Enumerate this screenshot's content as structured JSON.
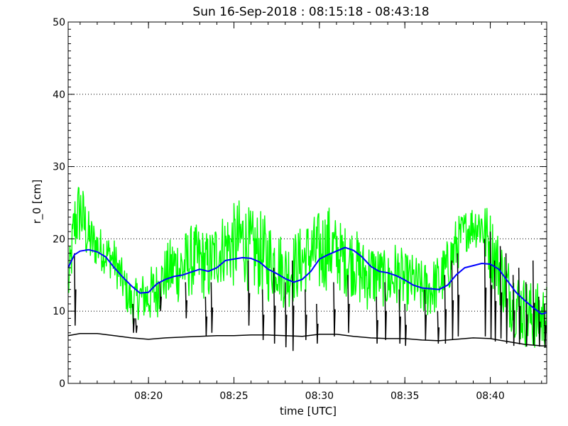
{
  "chart_data": {
    "type": "line",
    "title": "Sun 16-Sep-2018 : 08:15:18 - 08:43:18",
    "xlabel": "time [UTC]",
    "ylabel": "r_0 [cm]",
    "xlim": [
      "08:15:18",
      "08:43:18"
    ],
    "ylim": [
      0,
      50
    ],
    "x_ticks": [
      "08:20",
      "08:25",
      "08:30",
      "08:35",
      "08:40"
    ],
    "y_ticks": [
      0,
      10,
      20,
      30,
      40,
      50
    ],
    "grid": "horizontal dotted",
    "colors": {
      "background": "#ffffff",
      "axis": "#000000",
      "green": "#00ff00",
      "blue": "#0000ff",
      "black": "#000000"
    },
    "series": [
      {
        "color": "#00ff00",
        "style": "noisy",
        "x": [
          "08:15:18",
          "08:15:40",
          "08:16:00",
          "08:16:30",
          "08:17:00",
          "08:17:30",
          "08:18:00",
          "08:18:20",
          "08:18:40",
          "08:19:00",
          "08:19:30",
          "08:20:00",
          "08:20:30",
          "08:21:00",
          "08:21:30",
          "08:22:00",
          "08:22:30",
          "08:23:00",
          "08:23:30",
          "08:24:00",
          "08:24:30",
          "08:25:00",
          "08:25:30",
          "08:26:00",
          "08:26:30",
          "08:27:00",
          "08:27:30",
          "08:28:00",
          "08:28:30",
          "08:29:00",
          "08:29:30",
          "08:30:00",
          "08:30:30",
          "08:31:00",
          "08:31:30",
          "08:32:00",
          "08:32:30",
          "08:33:00",
          "08:33:30",
          "08:34:00",
          "08:34:30",
          "08:35:00",
          "08:35:30",
          "08:36:00",
          "08:36:30",
          "08:37:00",
          "08:37:30",
          "08:38:00",
          "08:38:30",
          "08:39:00",
          "08:39:30",
          "08:40:00",
          "08:40:30",
          "08:41:00",
          "08:41:30",
          "08:42:00",
          "08:42:30",
          "08:43:00",
          "08:43:18"
        ],
        "y": [
          13,
          22,
          24,
          20,
          19,
          18,
          17,
          15,
          13,
          11,
          12,
          12,
          13,
          15,
          16,
          16,
          17,
          17,
          16,
          18,
          19,
          19,
          20,
          18,
          18,
          17,
          17,
          15,
          16,
          17,
          18,
          18,
          19,
          18,
          17,
          17,
          15,
          15,
          15,
          14,
          15,
          14,
          14,
          13,
          13,
          14,
          16,
          19,
          21,
          22,
          22,
          19,
          16,
          13,
          11,
          10,
          9,
          9,
          9
        ],
        "amp": [
          3,
          5,
          5,
          4,
          3,
          3,
          3,
          3,
          3,
          3,
          3,
          4,
          4,
          4,
          5,
          5,
          5,
          5,
          5,
          5,
          5,
          6,
          6,
          6,
          6,
          6,
          5,
          5,
          5,
          5,
          5,
          6,
          6,
          5,
          5,
          5,
          5,
          5,
          4,
          4,
          5,
          4,
          4,
          4,
          4,
          4,
          4,
          4,
          3,
          3,
          4,
          5,
          5,
          5,
          5,
          5,
          5,
          5,
          5
        ]
      },
      {
        "color": "#0000ff",
        "style": "smooth",
        "x": [
          "08:15:18",
          "08:15:40",
          "08:16:00",
          "08:16:30",
          "08:17:00",
          "08:17:30",
          "08:18:00",
          "08:18:30",
          "08:19:00",
          "08:19:30",
          "08:20:00",
          "08:20:30",
          "08:21:00",
          "08:21:30",
          "08:22:00",
          "08:22:30",
          "08:23:00",
          "08:23:30",
          "08:24:00",
          "08:24:30",
          "08:25:00",
          "08:25:30",
          "08:26:00",
          "08:26:30",
          "08:27:00",
          "08:27:30",
          "08:28:00",
          "08:28:30",
          "08:29:00",
          "08:29:30",
          "08:30:00",
          "08:30:30",
          "08:31:00",
          "08:31:30",
          "08:32:00",
          "08:32:30",
          "08:33:00",
          "08:33:30",
          "08:34:00",
          "08:34:30",
          "08:35:00",
          "08:35:30",
          "08:36:00",
          "08:36:30",
          "08:37:00",
          "08:37:30",
          "08:38:00",
          "08:38:30",
          "08:39:00",
          "08:39:30",
          "08:40:00",
          "08:40:30",
          "08:41:00",
          "08:41:30",
          "08:42:00",
          "08:42:30",
          "08:43:00",
          "08:43:18"
        ],
        "y": [
          16,
          17.8,
          18.3,
          18.5,
          18.2,
          17.5,
          16.0,
          14.7,
          13.5,
          12.5,
          12.6,
          13.8,
          14.4,
          14.8,
          15.0,
          15.4,
          15.8,
          15.5,
          16.0,
          17.0,
          17.2,
          17.4,
          17.3,
          16.8,
          15.8,
          15.2,
          14.5,
          14.0,
          14.4,
          15.5,
          17.2,
          17.8,
          18.3,
          18.8,
          18.4,
          17.5,
          16.2,
          15.5,
          15.3,
          14.9,
          14.3,
          13.6,
          13.2,
          13.1,
          13.0,
          13.6,
          15.0,
          16.0,
          16.3,
          16.6,
          16.5,
          15.8,
          14.2,
          12.6,
          11.5,
          10.5,
          9.6,
          9.8
        ]
      },
      {
        "color": "#000000",
        "style": "baseline",
        "x": [
          "08:15:18",
          "08:16:00",
          "08:17:00",
          "08:18:00",
          "08:19:00",
          "08:20:00",
          "08:21:00",
          "08:22:00",
          "08:23:00",
          "08:24:00",
          "08:25:00",
          "08:26:00",
          "08:27:00",
          "08:28:00",
          "08:29:00",
          "08:30:00",
          "08:31:00",
          "08:32:00",
          "08:33:00",
          "08:34:00",
          "08:35:00",
          "08:36:00",
          "08:37:00",
          "08:38:00",
          "08:39:00",
          "08:40:00",
          "08:41:00",
          "08:42:00",
          "08:43:00",
          "08:43:18"
        ],
        "y": [
          6.6,
          6.9,
          6.9,
          6.6,
          6.3,
          6.1,
          6.3,
          6.4,
          6.5,
          6.6,
          6.6,
          6.7,
          6.7,
          6.6,
          6.5,
          6.8,
          6.8,
          6.5,
          6.3,
          6.2,
          6.2,
          6.0,
          5.9,
          6.1,
          6.3,
          6.2,
          5.8,
          5.4,
          5.2,
          5.2
        ]
      },
      {
        "color": "#000000",
        "style": "spikes",
        "x": [
          "08:15:40",
          "08:19:05",
          "08:19:15",
          "08:20:40",
          "08:22:10",
          "08:23:20",
          "08:23:40",
          "08:25:50",
          "08:26:40",
          "08:27:20",
          "08:28:00",
          "08:28:25",
          "08:29:10",
          "08:29:50",
          "08:30:50",
          "08:31:40",
          "08:33:20",
          "08:33:50",
          "08:34:40",
          "08:35:00",
          "08:36:10",
          "08:36:55",
          "08:37:20",
          "08:37:45",
          "08:38:05",
          "08:39:40",
          "08:40:00",
          "08:40:15",
          "08:40:35",
          "08:40:55",
          "08:41:20",
          "08:41:40",
          "08:42:05",
          "08:42:30",
          "08:42:50",
          "08:43:10"
        ],
        "top": [
          18,
          11,
          9,
          14,
          14,
          12,
          14,
          17,
          13,
          16,
          14,
          17,
          13,
          11,
          14,
          15,
          12,
          14,
          13,
          11,
          13,
          10,
          15,
          17,
          18,
          20,
          21,
          17,
          19,
          18,
          15,
          16,
          14,
          17,
          12,
          11
        ],
        "bottom": [
          8,
          7,
          7,
          10,
          9,
          6.5,
          7,
          8,
          6,
          5.5,
          5,
          4.5,
          6,
          5.5,
          6.5,
          7,
          5.5,
          6,
          5.5,
          5.2,
          6,
          5.5,
          5.5,
          6,
          6.5,
          6.5,
          6.2,
          5.8,
          6.2,
          5.5,
          5.2,
          5.4,
          5.1,
          5.3,
          5.1,
          5
        ]
      }
    ]
  }
}
